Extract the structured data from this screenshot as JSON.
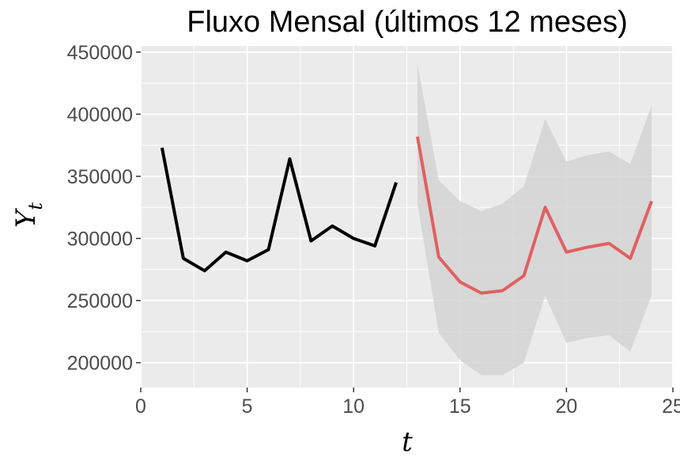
{
  "chart_data": {
    "type": "line",
    "title": "Fluxo Mensal (últimos 12 meses)",
    "xlabel": "t",
    "ylabel": "Y",
    "ylabel_subscript": "t",
    "xlim": [
      0,
      25
    ],
    "ylim": [
      180000,
      455000
    ],
    "x_ticks": [
      0,
      5,
      10,
      15,
      20,
      25
    ],
    "y_ticks": [
      200000,
      250000,
      300000,
      350000,
      400000,
      450000
    ],
    "grid": true,
    "legend": "none",
    "colors": {
      "panel": "#ebebeb",
      "grid": "#ffffff",
      "observed": "#000000",
      "forecast": "#e06060",
      "band": "#d3d3d3"
    },
    "series": [
      {
        "role": "observed",
        "x": [
          1,
          2,
          3,
          4,
          5,
          6,
          7,
          8,
          9,
          10,
          11,
          12
        ],
        "values": [
          373000,
          284000,
          274000,
          289000,
          282000,
          291000,
          364000,
          298000,
          310000,
          300000,
          294000,
          345000
        ]
      },
      {
        "role": "forecast",
        "x": [
          13,
          14,
          15,
          16,
          17,
          18,
          19,
          20,
          21,
          22,
          23,
          24
        ],
        "values": [
          382000,
          285000,
          265000,
          256000,
          258000,
          270000,
          325000,
          289000,
          293000,
          296000,
          284000,
          330000
        ]
      }
    ],
    "band": {
      "x": [
        13,
        14,
        15,
        16,
        17,
        18,
        19,
        20,
        21,
        22,
        23,
        24
      ],
      "lower": [
        328000,
        224000,
        202000,
        190000,
        190000,
        200000,
        254000,
        216000,
        220000,
        222000,
        209000,
        254000
      ],
      "upper": [
        440000,
        347000,
        330000,
        322000,
        328000,
        342000,
        396000,
        362000,
        367000,
        370000,
        360000,
        407000
      ]
    }
  }
}
